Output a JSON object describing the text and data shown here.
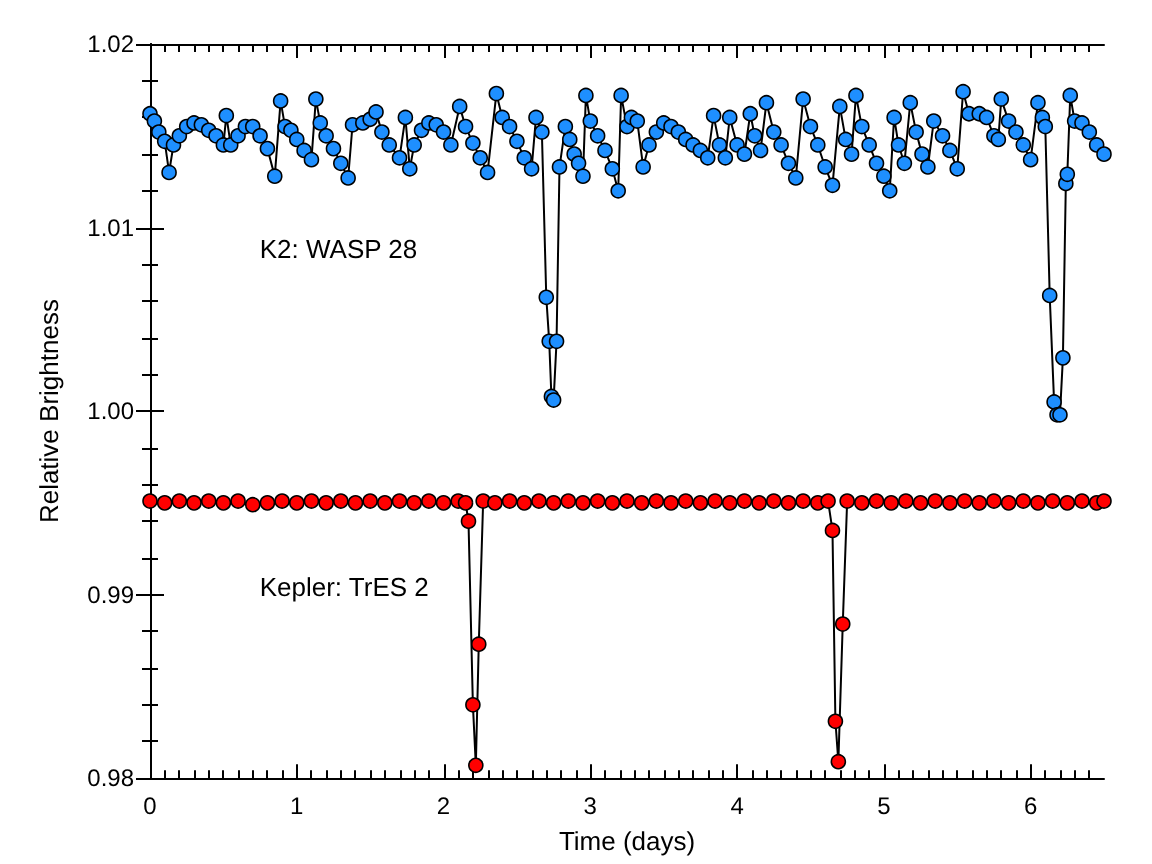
{
  "chart_data": {
    "type": "line",
    "xlabel": "Time (days)",
    "ylabel": "Relative Brightness",
    "xlim": [
      0,
      6.5
    ],
    "ylim": [
      0.98,
      1.02
    ],
    "xticks": [
      0,
      1,
      2,
      3,
      4,
      5,
      6
    ],
    "yticks": [
      {
        "value": 0.98,
        "label": "0.98"
      },
      {
        "value": 0.99,
        "label": "0.99"
      },
      {
        "value": 1.0,
        "label": "1.00"
      },
      {
        "value": 1.01,
        "label": "1.01"
      },
      {
        "value": 1.02,
        "label": "1.02"
      }
    ],
    "grid": false,
    "legend": false,
    "marker": "circle",
    "line_style": "solid",
    "series": [
      {
        "name": "K2: WASP 28",
        "color": "#1e8fff",
        "x": [
          0,
          0.03,
          0.06,
          0.1,
          0.13,
          0.16,
          0.2,
          0.25,
          0.3,
          0.35,
          0.4,
          0.45,
          0.5,
          0.52,
          0.55,
          0.6,
          0.65,
          0.7,
          0.75,
          0.8,
          0.85,
          0.89,
          0.92,
          0.96,
          1.0,
          1.05,
          1.1,
          1.13,
          1.16,
          1.2,
          1.25,
          1.3,
          1.35,
          1.38,
          1.45,
          1.5,
          1.54,
          1.58,
          1.63,
          1.7,
          1.74,
          1.77,
          1.8,
          1.85,
          1.9,
          1.95,
          2.0,
          2.05,
          2.11,
          2.15,
          2.2,
          2.25,
          2.3,
          2.36,
          2.4,
          2.45,
          2.5,
          2.55,
          2.6,
          2.63,
          2.67,
          2.7,
          2.72,
          2.735,
          2.75,
          2.77,
          2.79,
          2.83,
          2.86,
          2.89,
          2.92,
          2.95,
          2.97,
          3.0,
          3.05,
          3.1,
          3.15,
          3.19,
          3.21,
          3.25,
          3.28,
          3.32,
          3.36,
          3.4,
          3.45,
          3.5,
          3.55,
          3.6,
          3.65,
          3.7,
          3.75,
          3.8,
          3.84,
          3.88,
          3.92,
          3.95,
          4.0,
          4.05,
          4.09,
          4.12,
          4.16,
          4.2,
          4.25,
          4.3,
          4.35,
          4.4,
          4.45,
          4.5,
          4.55,
          4.6,
          4.65,
          4.7,
          4.74,
          4.78,
          4.81,
          4.85,
          4.9,
          4.95,
          5.0,
          5.04,
          5.07,
          5.1,
          5.14,
          5.18,
          5.22,
          5.26,
          5.3,
          5.34,
          5.4,
          5.45,
          5.5,
          5.54,
          5.58,
          5.65,
          5.7,
          5.75,
          5.78,
          5.8,
          5.85,
          5.9,
          5.95,
          6.0,
          6.05,
          6.08,
          6.1,
          6.13,
          6.16,
          6.18,
          6.2,
          6.22,
          6.24,
          6.25,
          6.27,
          6.3,
          6.35,
          6.4,
          6.45,
          6.5
        ],
        "values": [
          1.0162,
          1.0158,
          1.0152,
          1.0147,
          1.013,
          1.0145,
          1.015,
          1.0155,
          1.0157,
          1.0156,
          1.0153,
          1.015,
          1.0145,
          1.0161,
          1.0145,
          1.015,
          1.0155,
          1.0155,
          1.015,
          1.0143,
          1.0128,
          1.0169,
          1.0155,
          1.0153,
          1.0148,
          1.0142,
          1.0137,
          1.017,
          1.0157,
          1.015,
          1.0143,
          1.0135,
          1.0127,
          1.0156,
          1.0157,
          1.0159,
          1.0163,
          1.0152,
          1.0145,
          1.0138,
          1.016,
          1.0132,
          1.0145,
          1.0153,
          1.0157,
          1.0156,
          1.0152,
          1.0145,
          1.0166,
          1.0155,
          1.0146,
          1.0138,
          1.013,
          1.0173,
          1.016,
          1.0155,
          1.0147,
          1.0138,
          1.0132,
          1.016,
          1.0152,
          1.0062,
          1.0038,
          1.0008,
          1.0006,
          1.0038,
          1.0133,
          1.0155,
          1.0148,
          1.014,
          1.0135,
          1.0128,
          1.0172,
          1.0158,
          1.015,
          1.0142,
          1.0132,
          1.012,
          1.0172,
          1.0155,
          1.016,
          1.0158,
          1.0133,
          1.0145,
          1.0152,
          1.0157,
          1.0155,
          1.0152,
          1.0148,
          1.0145,
          1.0142,
          1.0138,
          1.0161,
          1.0145,
          1.0138,
          1.016,
          1.0145,
          1.014,
          1.0162,
          1.015,
          1.0142,
          1.0168,
          1.0152,
          1.0145,
          1.0135,
          1.0127,
          1.017,
          1.0155,
          1.0145,
          1.0133,
          1.0123,
          1.0166,
          1.0148,
          1.014,
          1.0172,
          1.0155,
          1.0145,
          1.0135,
          1.0128,
          1.012,
          1.016,
          1.0145,
          1.0135,
          1.0168,
          1.0152,
          1.014,
          1.0133,
          1.0158,
          1.015,
          1.0142,
          1.0132,
          1.0174,
          1.0162,
          1.0162,
          1.016,
          1.015,
          1.0148,
          1.017,
          1.0158,
          1.0152,
          1.0145,
          1.0137,
          1.0168,
          1.016,
          1.0155,
          1.0063,
          1.0005,
          0.9998,
          0.9998,
          1.0029,
          1.0124,
          1.0129,
          1.0172,
          1.0158,
          1.0157,
          1.0152,
          1.0145,
          1.014
        ]
      },
      {
        "name": "Kepler: TrES 2",
        "color": "#ff0000",
        "x": [
          0,
          0.1,
          0.2,
          0.3,
          0.4,
          0.5,
          0.6,
          0.7,
          0.8,
          0.9,
          1.0,
          1.1,
          1.2,
          1.3,
          1.4,
          1.5,
          1.6,
          1.7,
          1.8,
          1.9,
          2.0,
          2.1,
          2.15,
          2.17,
          2.2,
          2.22,
          2.24,
          2.27,
          2.35,
          2.45,
          2.55,
          2.65,
          2.75,
          2.85,
          2.95,
          3.05,
          3.15,
          3.25,
          3.35,
          3.45,
          3.55,
          3.65,
          3.75,
          3.85,
          3.95,
          4.05,
          4.15,
          4.25,
          4.35,
          4.45,
          4.55,
          4.62,
          4.65,
          4.67,
          4.69,
          4.72,
          4.75,
          4.85,
          4.95,
          5.05,
          5.15,
          5.25,
          5.35,
          5.45,
          5.55,
          5.65,
          5.75,
          5.85,
          5.95,
          6.05,
          6.15,
          6.25,
          6.35,
          6.45,
          6.5
        ],
        "values": [
          0.9951,
          0.995,
          0.9951,
          0.995,
          0.9951,
          0.995,
          0.9951,
          0.9949,
          0.995,
          0.9951,
          0.995,
          0.9951,
          0.995,
          0.9951,
          0.995,
          0.9951,
          0.995,
          0.9951,
          0.995,
          0.9951,
          0.995,
          0.9951,
          0.995,
          0.994,
          0.984,
          0.9807,
          0.9873,
          0.9951,
          0.995,
          0.9951,
          0.995,
          0.9951,
          0.995,
          0.9951,
          0.995,
          0.9951,
          0.995,
          0.9951,
          0.995,
          0.9951,
          0.995,
          0.9951,
          0.995,
          0.9951,
          0.995,
          0.9951,
          0.995,
          0.9951,
          0.995,
          0.9951,
          0.995,
          0.9951,
          0.9935,
          0.9831,
          0.9809,
          0.9884,
          0.9951,
          0.995,
          0.9951,
          0.995,
          0.9951,
          0.995,
          0.9951,
          0.995,
          0.9951,
          0.995,
          0.9951,
          0.995,
          0.9951,
          0.995,
          0.9951,
          0.995,
          0.9951,
          0.995,
          0.9951
        ]
      }
    ]
  }
}
